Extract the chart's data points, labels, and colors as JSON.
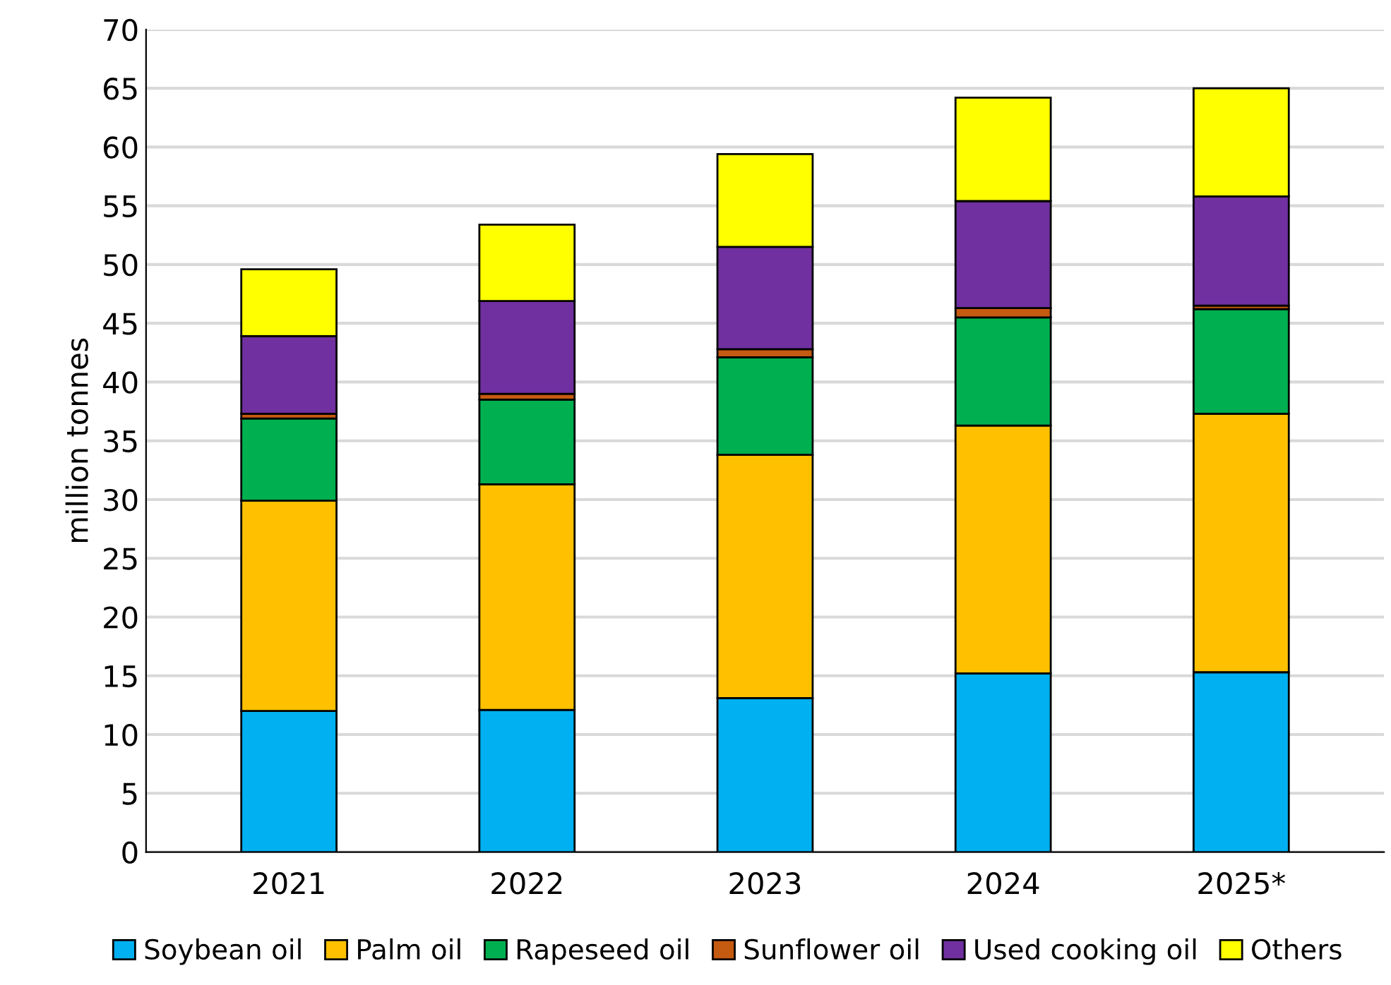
{
  "chart_data": {
    "type": "bar",
    "stacked": true,
    "ylabel": "million tonnes",
    "categories": [
      "2021",
      "2022",
      "2023",
      "2024",
      "2025*"
    ],
    "series": [
      {
        "name": "Soybean oil",
        "color": "#00b0f0",
        "values": [
          12.0,
          12.1,
          13.1,
          15.2,
          15.3
        ]
      },
      {
        "name": "Palm oil",
        "color": "#ffc000",
        "values": [
          17.9,
          19.2,
          20.7,
          21.1,
          22.0
        ]
      },
      {
        "name": "Rapeseed oil",
        "color": "#00b050",
        "values": [
          7.0,
          7.2,
          8.3,
          9.2,
          8.9
        ]
      },
      {
        "name": "Sunflower oil",
        "color": "#c55a11",
        "values": [
          0.4,
          0.5,
          0.7,
          0.8,
          0.3
        ]
      },
      {
        "name": "Used cooking oil",
        "color": "#7030a0",
        "values": [
          6.6,
          7.9,
          8.7,
          9.1,
          9.3
        ]
      },
      {
        "name": "Others",
        "color": "#ffff00",
        "values": [
          5.7,
          6.5,
          7.9,
          8.8,
          9.2
        ]
      }
    ],
    "ylim": [
      0,
      70
    ],
    "yticks": [
      0,
      5,
      10,
      15,
      20,
      25,
      30,
      35,
      40,
      45,
      50,
      55,
      60,
      65,
      70
    ],
    "grid": "y",
    "legend": "bottom"
  }
}
